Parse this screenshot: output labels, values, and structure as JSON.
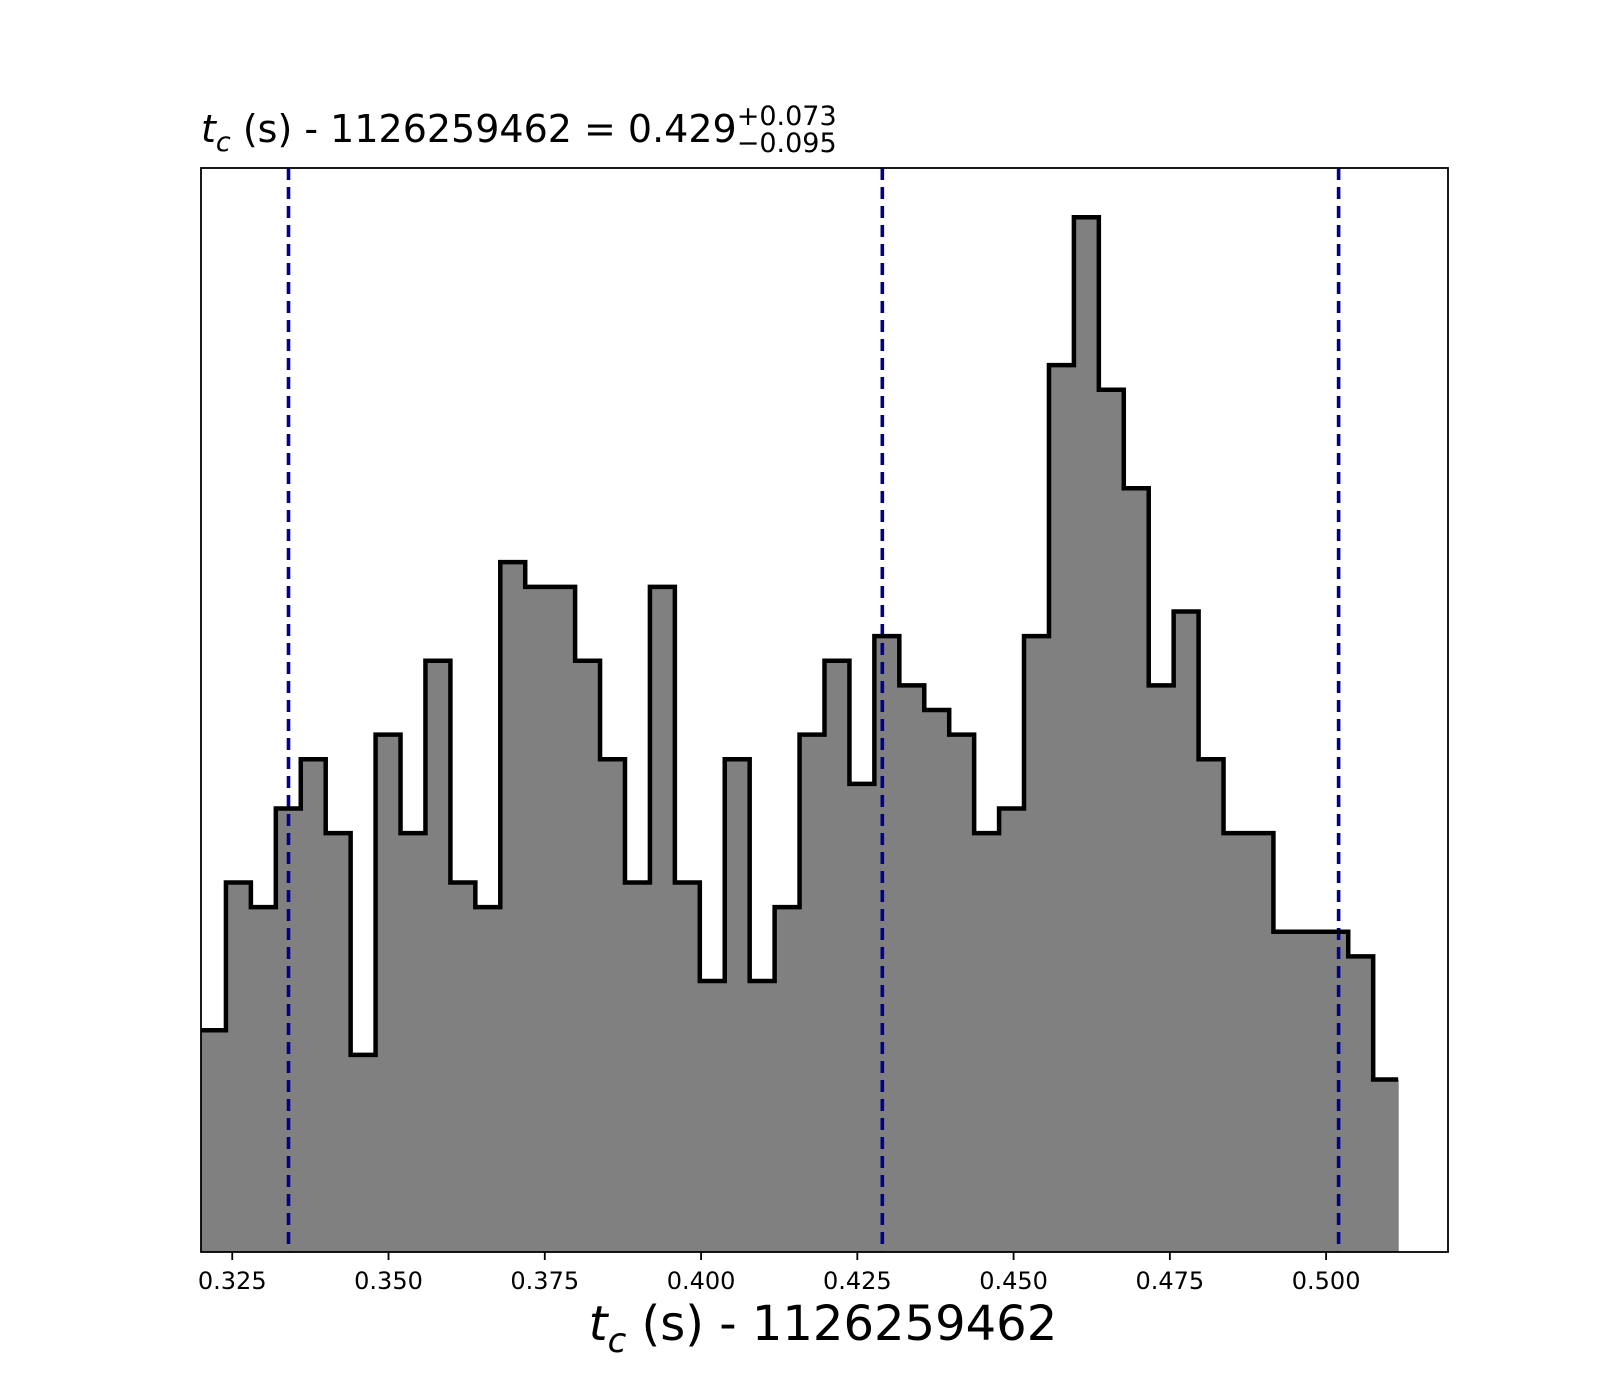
{
  "chart_data": {
    "type": "histogram",
    "title": {
      "variable": "t",
      "subscript": "c",
      "rest": " (s) - 1126259462 = 0.429",
      "plus_err": "+0.073",
      "minus_err": "−0.095"
    },
    "xlabel": {
      "variable": "t",
      "subscript": "c",
      "rest": " (s) - 1126259462"
    },
    "xlim": [
      0.32,
      0.5195
    ],
    "ylim": [
      0,
      44
    ],
    "x_ticks": [
      0.325,
      0.35,
      0.375,
      0.4,
      0.425,
      0.45,
      0.475,
      0.5
    ],
    "x_tick_labels": [
      "0.325",
      "0.350",
      "0.375",
      "0.400",
      "0.425",
      "0.450",
      "0.475",
      "0.500"
    ],
    "y_ticks_shown": false,
    "bins": {
      "start": 0.32,
      "width": 0.00399,
      "counts": [
        9,
        15,
        14,
        18,
        20,
        17,
        8,
        21,
        17,
        24,
        15,
        14,
        28,
        27,
        27,
        24,
        20,
        15,
        27,
        15,
        11,
        20,
        11,
        14,
        21,
        24,
        19,
        25,
        23,
        22,
        21,
        17,
        18,
        25,
        36,
        42,
        35,
        31,
        23,
        26,
        20,
        17,
        17,
        13,
        13,
        13,
        12,
        7
      ]
    },
    "quantile_lines": [
      0.334,
      0.429,
      0.502
    ],
    "colors": {
      "fill": "#808080",
      "edge": "#000000",
      "quantile": "#00008b"
    }
  }
}
